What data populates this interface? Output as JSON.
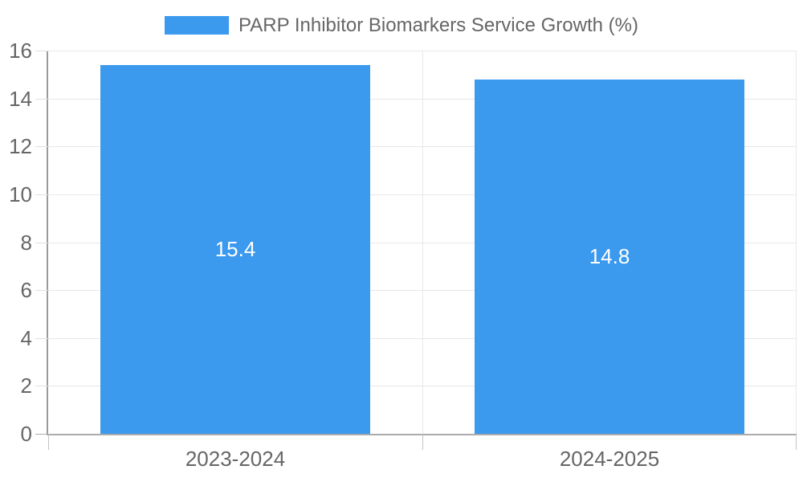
{
  "chart_data": {
    "type": "bar",
    "title": "PARP Inhibitor Biomarkers Service Growth (%)",
    "categories": [
      "2023-2024",
      "2024-2025"
    ],
    "series": [
      {
        "name": "PARP Inhibitor Biomarkers Service Growth (%)",
        "values": [
          15.4,
          14.8
        ]
      }
    ],
    "values": [
      15.4,
      14.8
    ],
    "value_labels": [
      "15.4",
      "14.8"
    ],
    "xlabel": "",
    "ylabel": "",
    "ylim": [
      0,
      16
    ],
    "ytick_step": 2,
    "yticks": [
      0,
      2,
      4,
      6,
      8,
      10,
      12,
      14,
      16
    ],
    "grid": true,
    "legend_position": "top-center",
    "bar_label_position": "center-inside"
  },
  "colors": {
    "bar_fill": "#3B99EE",
    "gridline": "#E8E8E8",
    "tick_mark_light": "#E0E0E0",
    "tick_mark_dark": "#C4C4C4",
    "y_axis_line": "#9B9B9B",
    "x_axis_line": "#ABABAB",
    "label_text": "#666666",
    "value_label_text": "#FFFFFF",
    "background": "#FFFFFF"
  }
}
